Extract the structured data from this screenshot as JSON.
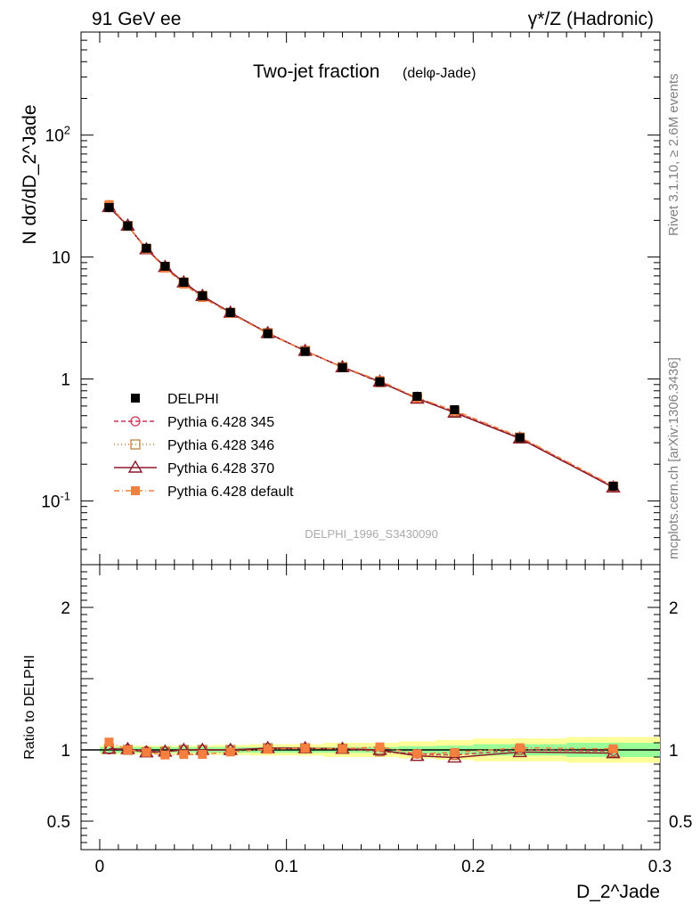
{
  "header": {
    "left": "91 GeV ee",
    "right": "γ*/Z (Hadronic)"
  },
  "side_labels": {
    "rivet": "Rivet 3.1.10, ≥ 2.6M events",
    "mcplots": "mcplots.cern.ch [arXiv:1306.3436]"
  },
  "chart_data": {
    "type": "line",
    "title": "Two-jet fraction",
    "subtitle": "(delφ-Jade)",
    "watermark": "DELPHI_1996_S3430090",
    "xlabel": "D_2^Jade",
    "ylabel": "N dσ/dD_2^Jade",
    "ratio_ylabel": "Ratio to DELPHI",
    "xlim": [
      -0.01,
      0.3
    ],
    "ylim_log": [
      0.03,
      700
    ],
    "ratio_ylim": [
      0.3,
      2.3
    ],
    "x_ticks": [
      "0",
      "0.1",
      "0.2",
      "0.3"
    ],
    "y_ticks": [
      "10^-1",
      "1",
      "10",
      "10^2"
    ],
    "ratio_ticks": [
      "0.5",
      "1",
      "2"
    ],
    "x": [
      0.005,
      0.015,
      0.025,
      0.035,
      0.045,
      0.055,
      0.07,
      0.09,
      0.11,
      0.13,
      0.15,
      0.17,
      0.19,
      0.225,
      0.275
    ],
    "x_bins": [
      [
        0.0,
        0.01
      ],
      [
        0.01,
        0.02
      ],
      [
        0.02,
        0.03
      ],
      [
        0.03,
        0.04
      ],
      [
        0.04,
        0.05
      ],
      [
        0.05,
        0.06
      ],
      [
        0.06,
        0.08
      ],
      [
        0.08,
        0.1
      ],
      [
        0.1,
        0.12
      ],
      [
        0.12,
        0.14
      ],
      [
        0.14,
        0.16
      ],
      [
        0.16,
        0.18
      ],
      [
        0.18,
        0.2
      ],
      [
        0.2,
        0.25
      ],
      [
        0.25,
        0.3
      ]
    ],
    "data": {
      "name": "DELPHI",
      "values": [
        25.5,
        18.0,
        11.8,
        8.4,
        6.2,
        4.8,
        3.5,
        2.35,
        1.68,
        1.24,
        0.95,
        0.72,
        0.56,
        0.33,
        0.132
      ],
      "band_inner": [
        0.02,
        0.02,
        0.02,
        0.02,
        0.02,
        0.02,
        0.02,
        0.02,
        0.02,
        0.02,
        0.02,
        0.025,
        0.03,
        0.04,
        0.05
      ],
      "band_outer": [
        0.03,
        0.03,
        0.03,
        0.03,
        0.03,
        0.03,
        0.035,
        0.04,
        0.04,
        0.05,
        0.05,
        0.06,
        0.07,
        0.08,
        0.09
      ]
    },
    "series": [
      {
        "name": "Pythia 6.428 345",
        "color": "#cc3355",
        "marker": "circle",
        "dash": "5,3",
        "values": [
          25.6,
          18.1,
          11.7,
          8.3,
          6.2,
          4.8,
          3.5,
          2.38,
          1.7,
          1.25,
          0.94,
          0.7,
          0.54,
          0.33,
          0.131
        ]
      },
      {
        "name": "Pythia 6.428 346",
        "color": "#bb7733",
        "marker": "square",
        "dash": "1,3",
        "values": [
          25.7,
          18.0,
          11.6,
          8.3,
          6.2,
          4.8,
          3.5,
          2.38,
          1.7,
          1.25,
          0.94,
          0.69,
          0.54,
          0.33,
          0.13
        ]
      },
      {
        "name": "Pythia 6.428 370",
        "color": "#8b1a2a",
        "marker": "triangle",
        "dash": "",
        "values": [
          25.7,
          18.1,
          11.6,
          8.3,
          6.2,
          4.8,
          3.5,
          2.38,
          1.7,
          1.25,
          0.95,
          0.69,
          0.53,
          0.325,
          0.129
        ]
      },
      {
        "name": "Pythia 6.428 default",
        "color": "#f47f3e",
        "marker": "filled-square",
        "dash": "6,3,1,3",
        "values": [
          26.9,
          18.0,
          11.6,
          8.1,
          6.0,
          4.65,
          3.45,
          2.36,
          1.7,
          1.25,
          0.97,
          0.7,
          0.55,
          0.335,
          0.133
        ]
      }
    ]
  }
}
